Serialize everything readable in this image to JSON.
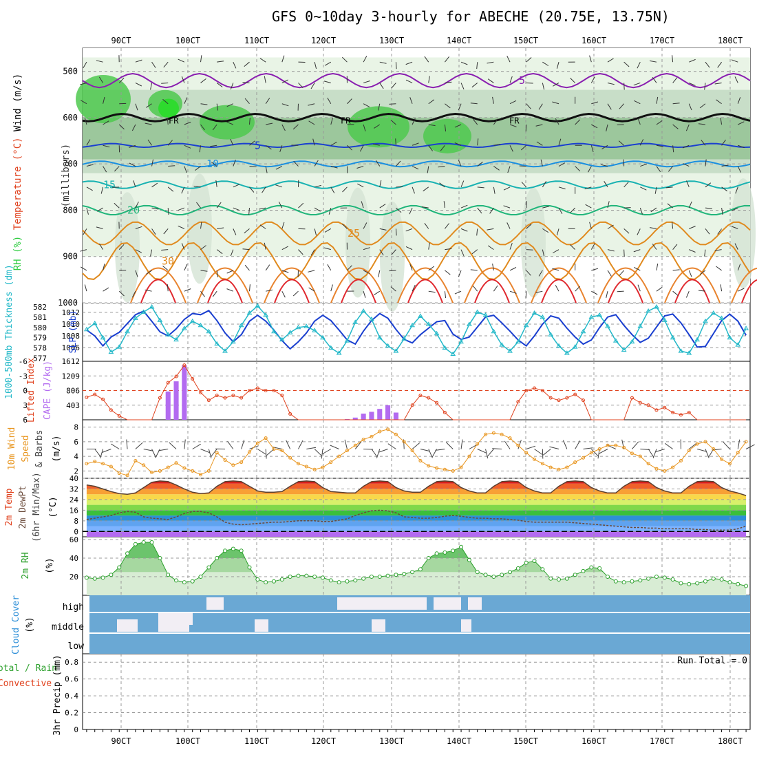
{
  "header": {
    "title": "GFS 0~10day 3-hourly for ABECHE (20.75E, 13.75N)"
  },
  "colors": {
    "wind": "#555555",
    "temperature_label": "#e0421e",
    "rh_green": "#2ecc40",
    "cyan": "#22b8c8",
    "blue": "#1a3fd0",
    "purple": "#b36bf0",
    "orange": "#e8951e",
    "green": "#2ca02c"
  },
  "time_axis": {
    "labels": [
      "90CT",
      "100CT",
      "110CT",
      "120CT",
      "130CT",
      "140CT",
      "150CT",
      "160CT",
      "170CT",
      "180CT"
    ]
  },
  "chart_data": [
    {
      "panel": "pressure-cross-section",
      "type": "heatmap",
      "ylabel_parts": [
        "RH (%)",
        "Temperature (°C)",
        "Wind (m/s)"
      ],
      "ylabel_units": "(millibars)",
      "yticks": [
        "500",
        "600",
        "700",
        "800",
        "900",
        "1000"
      ],
      "ylim": [
        450,
        1000
      ],
      "freezing_label": "FR",
      "isotherm_labels": [
        {
          "text": "-5",
          "color": "#8a1fb0"
        },
        {
          "text": "5",
          "color": "#1a3fd0"
        },
        {
          "text": "10",
          "color": "#1a8fe0"
        },
        {
          "text": "15",
          "color": "#19b2b2"
        },
        {
          "text": "20",
          "color": "#1fb57a"
        },
        {
          "text": "25",
          "color": "#e08a1e"
        },
        {
          "text": "30",
          "color": "#e08a1e"
        }
      ],
      "rh_contours": [
        "30",
        "50"
      ]
    },
    {
      "panel": "thickness-slp",
      "type": "line",
      "ylabel_left": "1000-500mb Thickness (dm)",
      "ylabel_right": "SLP (mb)",
      "thickness_ticks": [
        "582",
        "581",
        "580",
        "579",
        "578",
        "577"
      ],
      "slp_ticks": [
        "1012",
        "1010",
        "1008",
        "1006"
      ],
      "thickness_range": [
        576.7,
        582.4
      ],
      "slp_range": [
        1004.5,
        1012.8
      ],
      "slp_mb": [
        1009.0,
        1008.0,
        1006.3,
        1007.8,
        1008.6,
        1010.1,
        1011.6,
        1012.2,
        1010.5,
        1008.7,
        1008.0,
        1009.2,
        1010.8,
        1011.8,
        1011.6,
        1012.3,
        1010.6,
        1008.5,
        1007.0,
        1008.2,
        1010.5,
        1011.5,
        1010.5,
        1009.0,
        1007.2,
        1005.8,
        1007.0,
        1008.5,
        1010.5,
        1011.5,
        1010.6,
        1009.0,
        1007.3,
        1006.6,
        1008.8,
        1010.6,
        1011.8,
        1011.0,
        1009.1,
        1007.4,
        1006.8,
        1008.2,
        1009.3,
        1010.4,
        1010.6,
        1008.3,
        1007.4,
        1007.8,
        1009.5,
        1011.2,
        1011.5,
        1010.2,
        1008.8,
        1007.3,
        1006.3,
        1008.0,
        1010.0,
        1011.4,
        1011.0,
        1009.3,
        1007.8,
        1006.6,
        1007.3,
        1009.4,
        1011.2,
        1011.6,
        1009.8,
        1008.2,
        1006.9,
        1007.6,
        1009.5,
        1011.4,
        1011.7,
        1010.2,
        1008.2,
        1006.1,
        1006.2,
        1008.4,
        1010.6,
        1011.7,
        1010.5,
        1008.1
      ],
      "thickness_dm": [
        579.8,
        580.4,
        579.0,
        577.6,
        578.1,
        579.6,
        580.9,
        581.5,
        582.0,
        580.7,
        579.3,
        578.8,
        579.9,
        580.6,
        580.2,
        579.6,
        578.4,
        577.7,
        578.6,
        580.2,
        581.4,
        582.1,
        581.2,
        579.6,
        578.8,
        579.5,
        580.0,
        580.1,
        579.7,
        579.0,
        578.0,
        577.5,
        578.7,
        580.5,
        581.6,
        580.8,
        579.0,
        578.2,
        577.7,
        578.9,
        580.2,
        581.1,
        580.3,
        579.4,
        578.0,
        577.4,
        578.6,
        580.3,
        581.5,
        581.2,
        579.6,
        578.3,
        577.7,
        578.6,
        580.2,
        581.4,
        581.0,
        579.3,
        578.2,
        577.5,
        578.1,
        579.6,
        581.0,
        581.2,
        580.1,
        578.7,
        577.8,
        578.6,
        580.1,
        581.6,
        582.0,
        580.7,
        579.0,
        577.7,
        577.5,
        578.8,
        580.6,
        581.4,
        580.9,
        579.0,
        578.3,
        579.9
      ]
    },
    {
      "panel": "lifted-index-cape",
      "type": "bar",
      "ylabel_left": "Lifted Index",
      "ylabel_right": "CAPE (J/kg)",
      "li_ticks": [
        "-6",
        "-3",
        "0",
        "3",
        "6"
      ],
      "cape_ticks": [
        "1612",
        "1209",
        "806",
        "403"
      ],
      "li_range": [
        -6,
        6
      ],
      "cape_range": [
        0,
        1612
      ],
      "cape_jkg": [
        0,
        0,
        0,
        0,
        0,
        0,
        0,
        0,
        0,
        0,
        780,
        1060,
        1500,
        0,
        0,
        0,
        0,
        0,
        0,
        0,
        0,
        0,
        0,
        0,
        0,
        0,
        0,
        0,
        0,
        0,
        0,
        0,
        20,
        60,
        170,
        220,
        300,
        400,
        200,
        0,
        0,
        0,
        0,
        0,
        0,
        0,
        0,
        0,
        0,
        0,
        0,
        0,
        0,
        0,
        0,
        0,
        0,
        0,
        0,
        0,
        0,
        0,
        0,
        0,
        0,
        0,
        0,
        0,
        0,
        0,
        0,
        0,
        0,
        0,
        0,
        0,
        0,
        0,
        0,
        0,
        0,
        0
      ],
      "lifted_index": [
        1.4,
        0.8,
        1.8,
        4.0,
        5.2,
        6.0,
        6.0,
        6.0,
        6.0,
        1.5,
        -1.6,
        -2.9,
        -5.2,
        -2.4,
        0.4,
        2.0,
        1.0,
        1.5,
        1.0,
        1.5,
        0.0,
        -0.5,
        0.0,
        0.0,
        1.0,
        4.8,
        6.0,
        6.0,
        6.0,
        6.0,
        6.0,
        6.0,
        6.0,
        6.0,
        6.0,
        6.0,
        6.0,
        6.0,
        6.0,
        6.0,
        3.0,
        1.0,
        1.5,
        2.5,
        4.5,
        6.0,
        6.0,
        6.0,
        6.0,
        6.0,
        6.0,
        6.0,
        6.0,
        2.3,
        0.0,
        -0.5,
        0.0,
        1.5,
        2.0,
        1.5,
        0.8,
        2.0,
        6.0,
        6.0,
        6.0,
        6.0,
        6.0,
        1.5,
        2.5,
        3.0,
        4.0,
        3.5,
        4.5,
        5.0,
        4.5,
        6.0,
        6.0,
        6.0,
        6.0,
        6.0,
        6.0,
        6.0
      ]
    },
    {
      "panel": "wind-10m",
      "type": "line",
      "ylabel_parts": [
        "10m Wind",
        "Speed",
        "& Barbs"
      ],
      "ylabel_units": "(m/s)",
      "yticks": [
        "8",
        "6",
        "4",
        "2"
      ],
      "ylim": [
        1,
        9
      ],
      "speed_ms": [
        3.0,
        3.3,
        3.0,
        2.6,
        1.7,
        1.4,
        3.4,
        2.8,
        1.8,
        2.0,
        2.5,
        3.1,
        2.4,
        2.0,
        1.5,
        2.0,
        4.5,
        3.5,
        2.8,
        3.2,
        4.6,
        5.8,
        6.5,
        5.0,
        4.8,
        3.8,
        3.0,
        2.6,
        2.2,
        2.5,
        3.2,
        4.0,
        4.8,
        5.5,
        6.3,
        6.7,
        7.4,
        7.7,
        7.0,
        6.0,
        4.8,
        3.4,
        2.7,
        2.4,
        2.2,
        2.0,
        2.5,
        4.0,
        5.7,
        7.0,
        7.2,
        7.0,
        6.5,
        5.5,
        4.5,
        3.6,
        3.0,
        2.5,
        2.2,
        2.5,
        3.2,
        3.8,
        4.5,
        5.0,
        5.5,
        5.5,
        5.2,
        4.4,
        4.0,
        3.0,
        2.3,
        2.0,
        2.5,
        3.4,
        4.8,
        5.7,
        6.0,
        5.0,
        3.6,
        3.0,
        4.5,
        6.0
      ]
    },
    {
      "panel": "temp-dewpoint",
      "type": "area",
      "ylabel_parts": [
        "2m Temp",
        "2m DewPt",
        "(6hr Min/Max)"
      ],
      "ylabel_units": "(°C)",
      "yticks": [
        "40",
        "32",
        "24",
        "16",
        "8",
        "0"
      ],
      "ylim": [
        -4,
        40
      ],
      "temp_c": [
        35,
        34,
        32,
        30,
        28.5,
        28,
        29,
        33,
        37,
        38,
        37.5,
        35,
        32,
        29.5,
        28.5,
        29,
        34,
        37.5,
        38,
        37.5,
        34,
        30.5,
        29.5,
        29.5,
        30,
        34,
        37.5,
        38,
        37.5,
        33,
        30,
        29.5,
        29,
        29,
        34,
        37.5,
        38,
        37.5,
        33,
        30.5,
        29.5,
        29.5,
        34,
        37.5,
        38,
        37.5,
        33,
        30.5,
        29,
        29,
        34,
        37.5,
        38,
        37.5,
        33,
        30.5,
        29,
        29,
        34,
        37.5,
        38,
        37.5,
        33,
        30.5,
        29,
        29,
        34,
        37.5,
        38,
        37.5,
        33,
        30.5,
        29,
        29,
        34,
        37.5,
        38,
        37.5,
        33,
        30.5,
        29,
        27
      ],
      "dewpt_c": [
        9,
        10,
        11,
        12,
        14,
        15,
        14.5,
        11,
        10,
        9.5,
        9,
        11,
        13.5,
        15,
        15,
        14,
        11,
        7,
        5.5,
        5,
        5.5,
        6,
        6.5,
        7,
        7,
        7.5,
        8,
        8,
        8,
        7.5,
        7.5,
        8.5,
        9.5,
        12,
        14,
        15.5,
        16,
        15.5,
        14,
        11,
        10.5,
        10,
        10,
        10.5,
        11.5,
        12,
        11.5,
        10.5,
        10,
        10,
        9.5,
        9.5,
        9,
        8.5,
        7.5,
        7,
        7,
        7,
        7,
        7,
        6.5,
        6,
        5.5,
        5,
        4.5,
        4,
        3.5,
        3,
        3,
        2.5,
        2.5,
        2,
        2,
        2,
        2,
        1.5,
        1.5,
        1,
        1,
        1,
        2,
        4
      ]
    },
    {
      "panel": "rh-2m",
      "type": "area",
      "ylabel": "2m RH",
      "ylabel_units": "(%)",
      "yticks": [
        "60",
        "40",
        "20"
      ],
      "ylim": [
        0,
        60
      ],
      "rh_pct": [
        19,
        18,
        19,
        22,
        30,
        45,
        55,
        57,
        57,
        40,
        22,
        16,
        14,
        15,
        20,
        30,
        40,
        48,
        50,
        48,
        30,
        17,
        14,
        15,
        17,
        20,
        21,
        21,
        20,
        19,
        16,
        14,
        15,
        16,
        18,
        20,
        20,
        21,
        22,
        23,
        25,
        28,
        40,
        45,
        46,
        48,
        52,
        38,
        25,
        22,
        20,
        22,
        25,
        29,
        35,
        37,
        28,
        18,
        17,
        18,
        22,
        26,
        30,
        29,
        20,
        15,
        14,
        15,
        16,
        18,
        20,
        19,
        17,
        13,
        12,
        13,
        15,
        18,
        17,
        14,
        12,
        10
      ]
    },
    {
      "panel": "cloud-cover",
      "type": "heatmap",
      "ylabel": "Cloud Cover",
      "ylabel_units": "(%)",
      "rows": [
        "high",
        "middle",
        "low"
      ]
    },
    {
      "panel": "precip-3hr",
      "type": "bar",
      "ylabel_left": "Total / Rain",
      "ylabel_left2": "Convective",
      "ylabel_right": "3hr Precip (mm)",
      "yticks": [
        "0.8",
        "0.6",
        "0.4",
        "0.2",
        "0"
      ],
      "ylim": [
        0,
        0.9
      ],
      "run_total": "Run Total = 0",
      "values_mm": []
    }
  ]
}
